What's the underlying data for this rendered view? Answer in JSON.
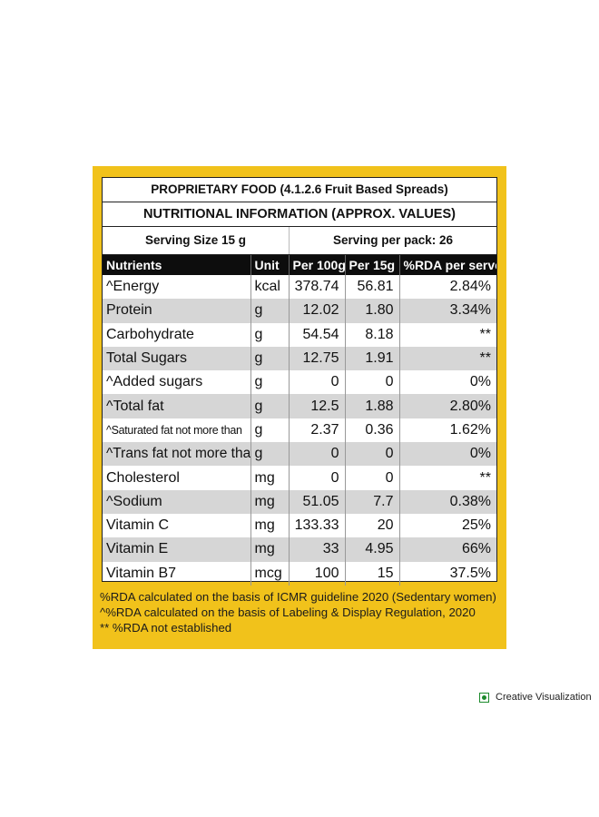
{
  "label": {
    "title": "PROPRIETARY FOOD (4.1.2.6 Fruit Based Spreads)",
    "subtitle": "NUTRITIONAL INFORMATION (APPROX. VALUES)",
    "serving_size": "Serving Size 15 g",
    "serving_per_pack": "Serving per pack: 26",
    "columns": [
      "Nutrients",
      "Unit",
      "Per 100g",
      "Per 15g",
      "%RDA per serve"
    ],
    "rows": [
      [
        "^Energy",
        "kcal",
        "378.74",
        "56.81",
        "2.84%"
      ],
      [
        "Protein",
        "g",
        "12.02",
        "1.80",
        "3.34%"
      ],
      [
        "Carbohydrate",
        "g",
        "54.54",
        "8.18",
        "**"
      ],
      [
        "Total Sugars",
        "g",
        "12.75",
        "1.91",
        "**"
      ],
      [
        "^Added sugars",
        "g",
        "0",
        "0",
        "0%"
      ],
      [
        "^Total fat",
        "g",
        "12.5",
        "1.88",
        "2.80%"
      ],
      [
        "^Saturated fat not more than",
        "g",
        "2.37",
        "0.36",
        "1.62%"
      ],
      [
        "^Trans fat not more than",
        "g",
        "0",
        "0",
        "0%"
      ],
      [
        "Cholesterol",
        "mg",
        "0",
        "0",
        "**"
      ],
      [
        "^Sodium",
        "mg",
        "51.05",
        "7.7",
        "0.38%"
      ],
      [
        "Vitamin C",
        "mg",
        "133.33",
        "20",
        "25%"
      ],
      [
        "Vitamin E",
        "mg",
        "33",
        "4.95",
        "66%"
      ],
      [
        "Vitamin B7",
        "mcg",
        "100",
        "15",
        "37.5%"
      ]
    ],
    "notes": [
      "%RDA calculated on the basis of ICMR guideline 2020 (Sedentary women)",
      "^%RDA  calculated on the basis of Labeling & Display Regulation, 2020",
      "** %RDA not established"
    ]
  },
  "badge": {
    "icon": "veg-icon",
    "text": "Creative Visualization",
    "color": "#1c8a2b"
  },
  "colors": {
    "frame": "#f1c21b",
    "header_bg": "#0d0d0d",
    "alt_row": "#d6d6d6"
  }
}
